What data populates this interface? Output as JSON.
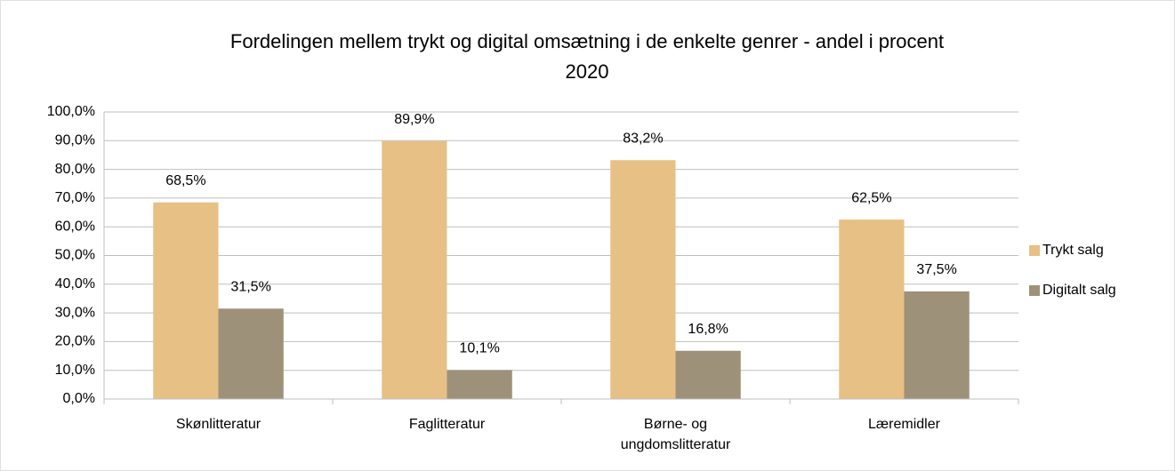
{
  "chart_data": {
    "type": "bar",
    "title": [
      "Fordelingen mellem trykt og digital omsætning i de enkelte genrer - andel i procent",
      "2020"
    ],
    "categories": [
      "Skønlitteratur",
      "Faglitteratur",
      "Børne- og ungdomslitteratur",
      "Læremidler"
    ],
    "series": [
      {
        "name": "Trykt salg",
        "color": "#e6c084",
        "values": [
          68.5,
          89.9,
          83.2,
          62.5
        ],
        "value_labels": [
          "68,5%",
          "89,9%",
          "83,2%",
          "62,5%"
        ]
      },
      {
        "name": "Digitalt salg",
        "color": "#9e917a",
        "values": [
          31.5,
          10.1,
          16.8,
          37.5
        ],
        "value_labels": [
          "31,5%",
          "10,1%",
          "16,8%",
          "37,5%"
        ]
      }
    ],
    "ylim": [
      0,
      100
    ],
    "yticks": [
      {
        "value": 0,
        "label": "0,0%"
      },
      {
        "value": 10,
        "label": "10,0%"
      },
      {
        "value": 20,
        "label": "20,0%"
      },
      {
        "value": 30,
        "label": "30,0%"
      },
      {
        "value": 40,
        "label": "40,0%"
      },
      {
        "value": 50,
        "label": "50,0%"
      },
      {
        "value": 60,
        "label": "60,0%"
      },
      {
        "value": 70,
        "label": "70,0%"
      },
      {
        "value": 80,
        "label": "80,0%"
      },
      {
        "value": 90,
        "label": "90,0%"
      },
      {
        "value": 100,
        "label": "100,0%"
      }
    ],
    "grid": true,
    "legend": "right"
  }
}
